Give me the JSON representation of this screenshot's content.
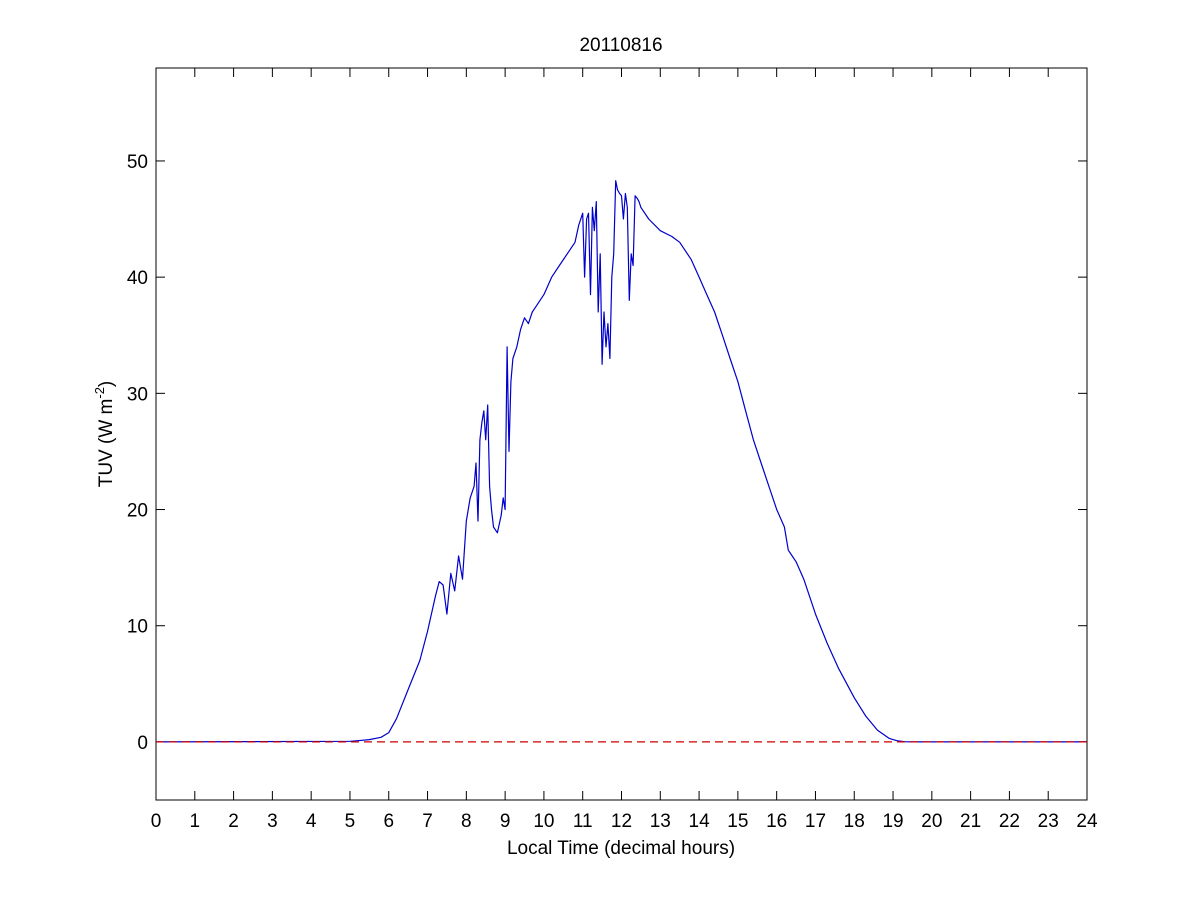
{
  "chart_data": {
    "type": "line",
    "title": "20110816",
    "xlabel": "Local Time (decimal hours)",
    "ylabel": "TUV (W m",
    "ylabel_sup": "-2",
    "ylabel_suffix": ")",
    "xlim": [
      0,
      24
    ],
    "ylim": [
      -5,
      58
    ],
    "xticks": [
      0,
      1,
      2,
      3,
      4,
      5,
      6,
      7,
      8,
      9,
      10,
      11,
      12,
      13,
      14,
      15,
      16,
      17,
      18,
      19,
      20,
      21,
      22,
      23,
      24
    ],
    "yticks": [
      0,
      10,
      20,
      30,
      40,
      50
    ],
    "grid": false,
    "legend": "none",
    "colors": {
      "series": "#0000cc",
      "reference": "#cc0000",
      "axes": "#000000",
      "background": "#ffffff"
    },
    "series": [
      {
        "style": "solid",
        "x": [
          0,
          5.0,
          5.2,
          5.5,
          5.8,
          6.0,
          6.2,
          6.5,
          6.8,
          7.0,
          7.2,
          7.3,
          7.4,
          7.5,
          7.6,
          7.7,
          7.8,
          7.9,
          8.0,
          8.1,
          8.2,
          8.25,
          8.3,
          8.35,
          8.4,
          8.45,
          8.5,
          8.55,
          8.6,
          8.65,
          8.7,
          8.8,
          8.9,
          8.95,
          9.0,
          9.05,
          9.1,
          9.15,
          9.2,
          9.3,
          9.4,
          9.5,
          9.6,
          9.7,
          9.8,
          10.0,
          10.2,
          10.4,
          10.6,
          10.8,
          10.9,
          11.0,
          11.05,
          11.1,
          11.15,
          11.2,
          11.25,
          11.3,
          11.35,
          11.4,
          11.45,
          11.5,
          11.55,
          11.6,
          11.65,
          11.7,
          11.75,
          11.8,
          11.85,
          11.9,
          11.95,
          12.0,
          12.05,
          12.1,
          12.15,
          12.2,
          12.25,
          12.3,
          12.35,
          12.4,
          12.45,
          12.5,
          12.7,
          13.0,
          13.3,
          13.5,
          13.8,
          14.0,
          14.2,
          14.4,
          14.6,
          14.8,
          15.0,
          15.2,
          15.4,
          15.6,
          15.8,
          16.0,
          16.2,
          16.3,
          16.4,
          16.5,
          16.7,
          17.0,
          17.3,
          17.6,
          18.0,
          18.3,
          18.6,
          18.9,
          19.1,
          19.3,
          19.5,
          20.0,
          24.0
        ],
        "y": [
          0,
          0.05,
          0.1,
          0.2,
          0.4,
          0.8,
          2.0,
          4.5,
          7.0,
          9.5,
          12.5,
          13.8,
          13.5,
          11.0,
          14.5,
          13.0,
          16.0,
          14.0,
          19.0,
          21.0,
          22.0,
          24.0,
          19.0,
          26.0,
          27.5,
          28.5,
          26.0,
          29.0,
          22.0,
          20.0,
          18.5,
          18.0,
          19.5,
          21.0,
          20.0,
          34.0,
          25.0,
          31.0,
          33.0,
          34.0,
          35.5,
          36.5,
          36.0,
          37.0,
          37.5,
          38.5,
          40.0,
          41.0,
          42.0,
          43.0,
          44.5,
          45.5,
          40.0,
          45.0,
          45.5,
          38.5,
          46.0,
          44.0,
          46.5,
          37.0,
          42.0,
          32.5,
          37.0,
          34.0,
          36.0,
          33.0,
          40.0,
          42.0,
          48.3,
          47.5,
          47.2,
          47.0,
          45.0,
          47.2,
          46.0,
          38.0,
          42.0,
          41.0,
          47.0,
          46.8,
          46.5,
          46.0,
          45.0,
          44.0,
          43.5,
          43.0,
          41.5,
          40.0,
          38.5,
          37.0,
          35.0,
          33.0,
          31.0,
          28.5,
          26.0,
          24.0,
          22.0,
          20.0,
          18.5,
          16.5,
          16.0,
          15.5,
          14.0,
          11.0,
          8.5,
          6.3,
          3.8,
          2.2,
          1.0,
          0.3,
          0.1,
          0.02,
          0,
          0,
          0
        ]
      },
      {
        "style": "dashed",
        "x": [
          0,
          24
        ],
        "y": [
          0,
          0
        ]
      }
    ]
  }
}
